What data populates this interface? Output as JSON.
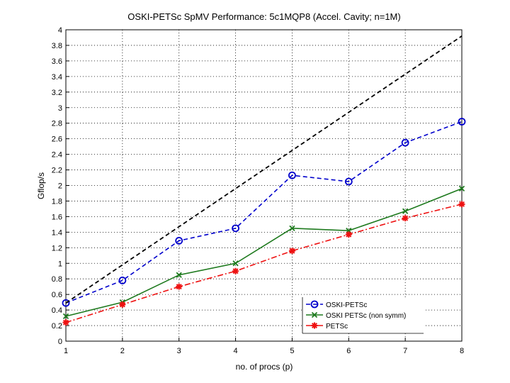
{
  "chart_data": {
    "type": "line",
    "title": "OSKI-PETSc SpMV Performance: 5c1MQP8 (Accel. Cavity; n=1M)",
    "xlabel": "no. of procs (p)",
    "ylabel": "Gflop/s",
    "xlim": [
      1,
      8
    ],
    "ylim": [
      0,
      4
    ],
    "xticks": [
      "1",
      "2",
      "3",
      "4",
      "5",
      "6",
      "7",
      "8"
    ],
    "yticks": [
      "0",
      "0.2",
      "0.4",
      "0.6",
      "0.8",
      "1",
      "1.2",
      "1.4",
      "1.6",
      "1.8",
      "2",
      "2.2",
      "2.4",
      "2.6",
      "2.8",
      "3",
      "3.2",
      "3.4",
      "3.6",
      "3.8",
      "4"
    ],
    "grid": true,
    "legend_position": "bottom-right",
    "x": [
      1,
      2,
      3,
      4,
      5,
      6,
      7,
      8
    ],
    "series": [
      {
        "name": "OSKI-PETSc",
        "values": [
          0.49,
          0.78,
          1.29,
          1.45,
          2.13,
          2.05,
          2.55,
          2.82
        ],
        "color": "#0000cc",
        "marker": "circle",
        "dash": "dashed"
      },
      {
        "name": "OSKI PETSc (non symm)",
        "values": [
          0.32,
          0.5,
          0.85,
          1.0,
          1.45,
          1.42,
          1.67,
          1.96
        ],
        "color": "#1e7a1e",
        "marker": "x",
        "dash": "solid"
      },
      {
        "name": "PETSc",
        "values": [
          0.24,
          0.47,
          0.7,
          0.9,
          1.16,
          1.37,
          1.58,
          1.76
        ],
        "color": "#ee1111",
        "marker": "star",
        "dash": "dashdot"
      },
      {
        "values": [
          0.49,
          0.98,
          1.47,
          1.96,
          2.45,
          2.94,
          3.43,
          3.92
        ],
        "color": "#000000",
        "marker": "none",
        "dash": "dashed"
      }
    ]
  }
}
